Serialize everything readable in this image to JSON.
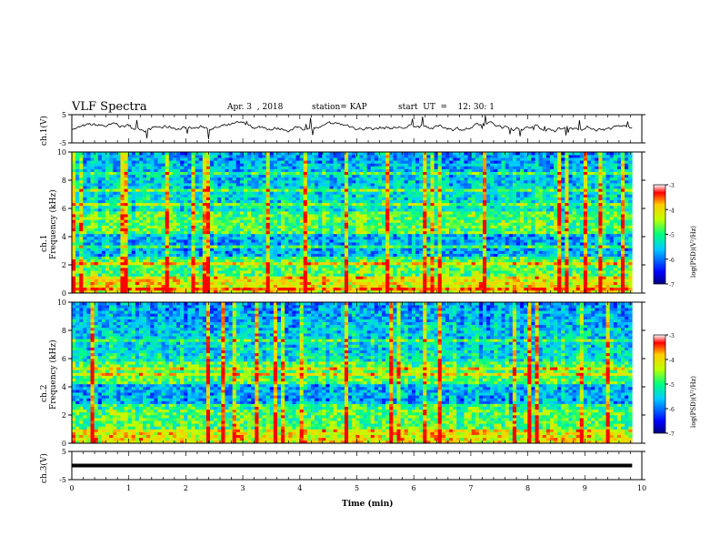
{
  "header": {
    "title": "VLF Spectra",
    "date": "Apr. 3  , 2018",
    "station": "station= KAP",
    "start": "start  UT  =    12: 30: 1"
  },
  "axes": {
    "xlabel": "Time  (min)",
    "ch1_voltage_label": "ch.1(V)",
    "ch3_voltage_label": "ch.3(V)",
    "ch1_spec_label": "ch.1",
    "ch2_spec_label": "ch.2",
    "freq_label": "Frequency  (kHz)",
    "cbar_label": "log(PSD)(V²/Hz)"
  },
  "chart_data": [
    {
      "type": "line",
      "name": "ch1-voltage",
      "ylabel": "ch.1(V)",
      "xlim": [
        0,
        10
      ],
      "ylim": [
        -5,
        5
      ],
      "yticks": [
        -5,
        5
      ],
      "mean_level": 0.5,
      "data_end_min": 9.83
    },
    {
      "type": "heatmap",
      "name": "ch1-spectrogram",
      "ylabel": "Frequency (kHz)",
      "xlim": [
        0,
        10
      ],
      "ylim": [
        0,
        10
      ],
      "yticks": [
        0,
        2,
        4,
        6,
        8,
        10
      ],
      "colorbar": {
        "range": [
          -7,
          -3
        ],
        "ticks": [
          -3,
          -4,
          -5,
          -6,
          -7
        ],
        "label": "log(PSD)(V²/Hz)"
      }
    },
    {
      "type": "heatmap",
      "name": "ch2-spectrogram",
      "ylabel": "Frequency (kHz)",
      "xlim": [
        0,
        10
      ],
      "ylim": [
        0,
        10
      ],
      "yticks": [
        0,
        2,
        4,
        6,
        8,
        10
      ],
      "colorbar": {
        "range": [
          -7,
          -3
        ],
        "ticks": [
          -3,
          -4,
          -5,
          -6,
          -7
        ],
        "label": "log(PSD)(V²/Hz)"
      }
    },
    {
      "type": "line",
      "name": "ch3-voltage",
      "ylabel": "ch.3(V)",
      "xlim": [
        0,
        10
      ],
      "ylim": [
        -5,
        5
      ],
      "yticks": [
        -5,
        5
      ],
      "level": 0.0,
      "data_end_min": 9.83
    }
  ],
  "xaxis": {
    "xlim": [
      0,
      10
    ],
    "ticks": [
      "0",
      "1",
      "2",
      "3",
      "4",
      "5",
      "6",
      "7",
      "8",
      "9",
      "10"
    ]
  }
}
